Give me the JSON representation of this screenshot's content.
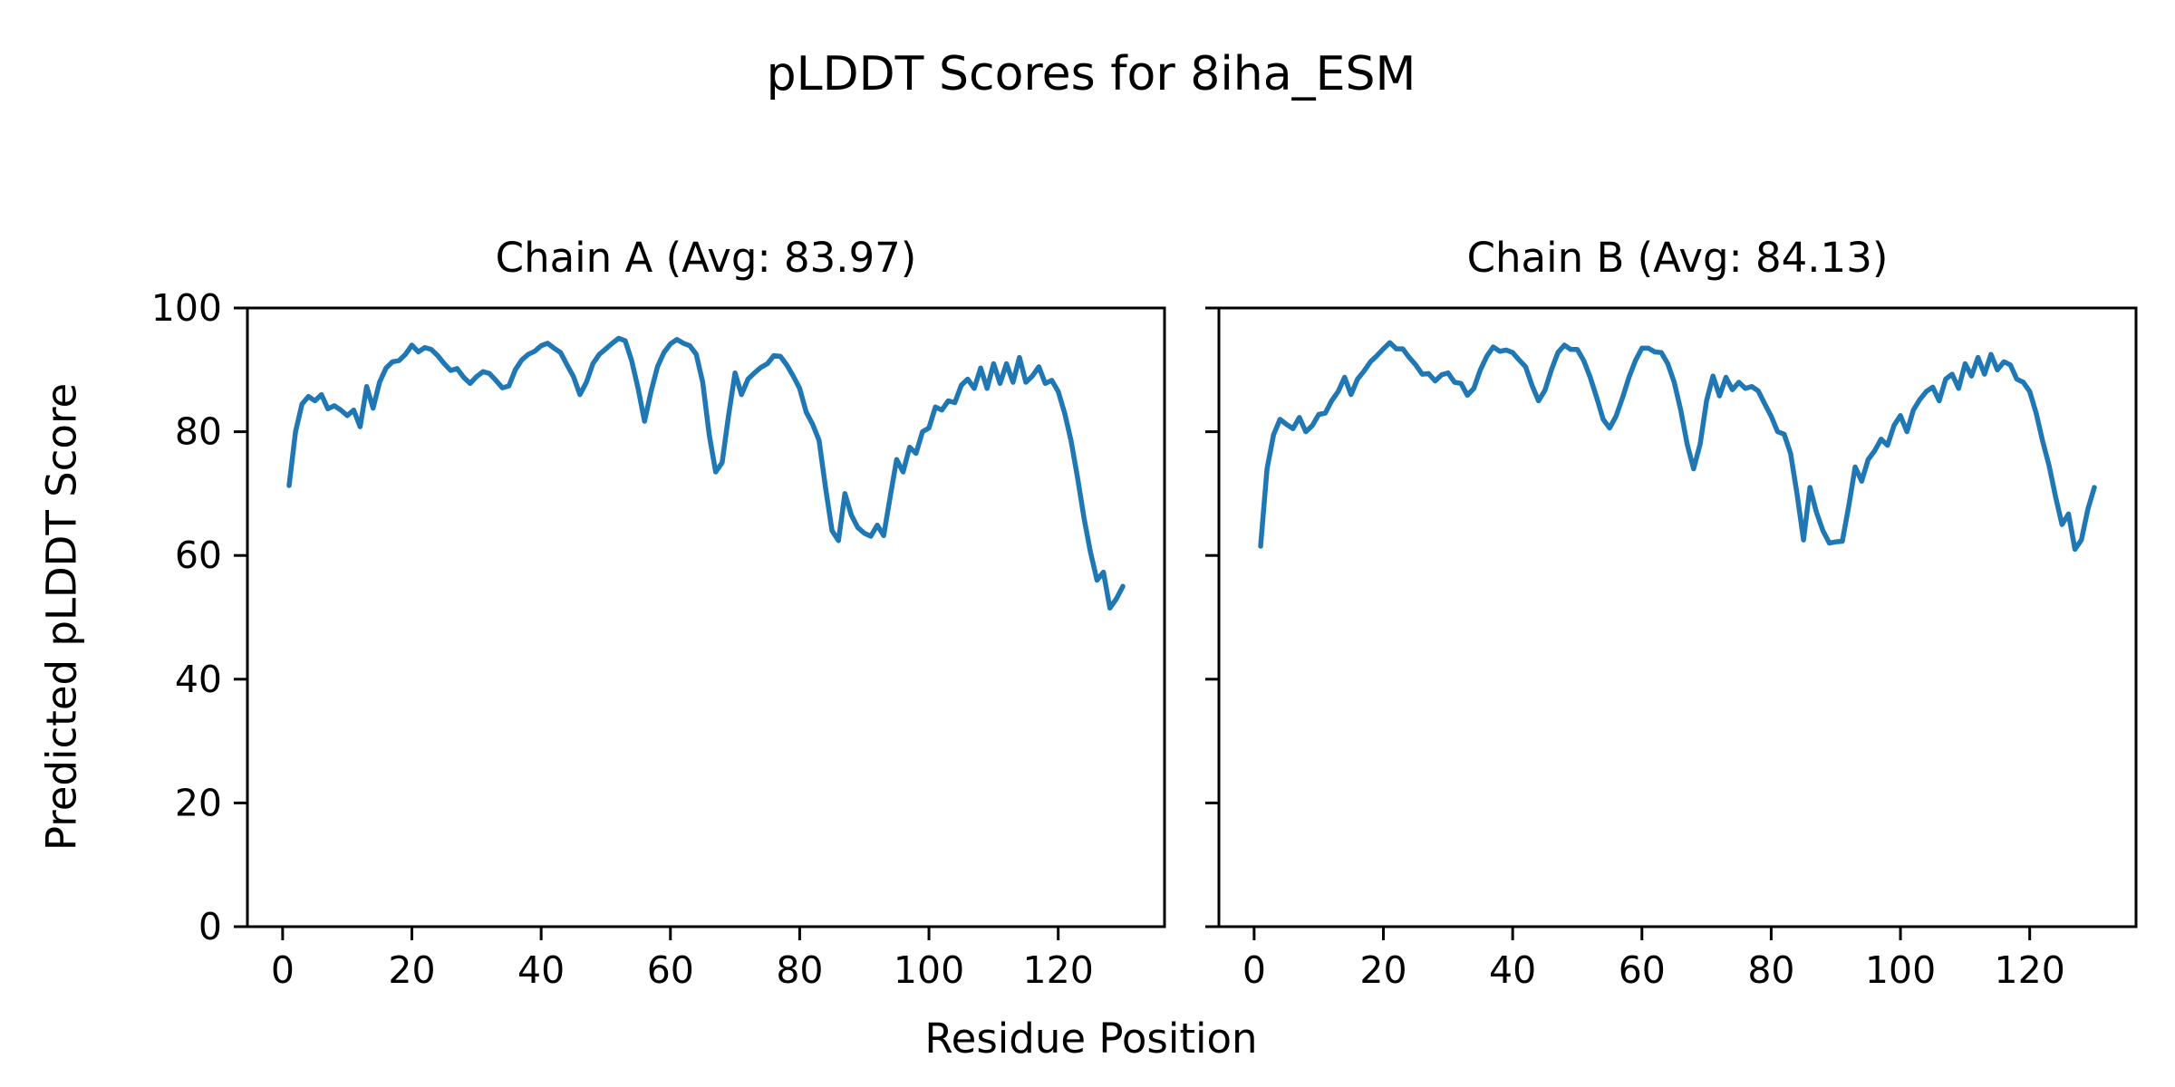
{
  "figure": {
    "suptitle": "pLDDT Scores for 8iha_ESM",
    "xlabel": "Residue Position",
    "ylabel": "Predicted pLDDT Score",
    "background_color": "#ffffff",
    "axis_color": "#000000",
    "line_color": "#1f77b4"
  },
  "chart_data": [
    {
      "type": "line",
      "title": "Chain A (Avg: 83.97)",
      "chain": "A",
      "avg": 83.97,
      "x_start": 1,
      "xlim": [
        -5.45,
        136.45
      ],
      "ylim": [
        0,
        100
      ],
      "xticks": [
        0,
        20,
        40,
        60,
        80,
        100,
        120
      ],
      "yticks": [
        0,
        20,
        40,
        60,
        80,
        100
      ],
      "show_ytick_labels": true,
      "grid": false,
      "values": [
        71.3,
        80.0,
        84.5,
        85.7,
        85.0,
        86.0,
        83.7,
        84.2,
        83.5,
        82.6,
        83.5,
        80.8,
        87.3,
        83.8,
        88.0,
        90.3,
        91.3,
        91.5,
        92.5,
        94.0,
        92.9,
        93.6,
        93.3,
        92.3,
        91.0,
        89.9,
        90.2,
        88.8,
        87.8,
        88.9,
        89.7,
        89.4,
        88.3,
        87.1,
        87.4,
        90.0,
        91.6,
        92.5,
        93.0,
        93.9,
        94.3,
        93.5,
        92.8,
        90.8,
        88.9,
        86.0,
        88.0,
        91.0,
        92.5,
        93.4,
        94.3,
        95.1,
        94.7,
        91.5,
        87.0,
        81.7,
        86.5,
        90.5,
        92.8,
        94.2,
        94.9,
        94.3,
        93.9,
        92.5,
        88.0,
        79.5,
        73.5,
        75.0,
        82.7,
        89.5,
        86.0,
        88.5,
        89.5,
        90.4,
        91.0,
        92.3,
        92.2,
        90.8,
        89.0,
        87.0,
        83.2,
        81.2,
        78.6,
        71.0,
        64.0,
        62.4,
        70.0,
        66.5,
        64.5,
        63.6,
        63.1,
        64.9,
        63.2,
        69.5,
        75.5,
        73.5,
        77.5,
        76.5,
        80.0,
        80.6,
        84.0,
        83.5,
        85.0,
        84.7,
        87.5,
        88.5,
        87.0,
        90.3,
        87.0,
        91.0,
        87.8,
        91.0,
        88.0,
        92.0,
        88.0,
        89.0,
        90.5,
        87.8,
        88.3,
        86.5,
        83.0,
        78.5,
        72.5,
        66.0,
        60.5,
        56.0,
        57.3,
        51.5,
        53.0,
        55.0
      ]
    },
    {
      "type": "line",
      "title": "Chain B (Avg: 84.13)",
      "chain": "B",
      "avg": 84.13,
      "x_start": 1,
      "xlim": [
        -5.45,
        136.45
      ],
      "ylim": [
        0,
        100
      ],
      "xticks": [
        0,
        20,
        40,
        60,
        80,
        100,
        120
      ],
      "yticks": [
        0,
        20,
        40,
        60,
        80,
        100
      ],
      "show_ytick_labels": false,
      "grid": false,
      "values": [
        61.5,
        74.0,
        79.5,
        82.0,
        81.2,
        80.5,
        82.3,
        80.0,
        81.0,
        82.8,
        83.0,
        85.0,
        86.5,
        88.8,
        86.0,
        88.5,
        89.8,
        91.3,
        92.3,
        93.4,
        94.4,
        93.4,
        93.4,
        92.0,
        90.8,
        89.3,
        89.4,
        88.2,
        89.2,
        89.5,
        88.0,
        87.8,
        85.9,
        87.0,
        90.0,
        92.2,
        93.7,
        93.0,
        93.2,
        92.8,
        91.6,
        90.5,
        87.5,
        85.0,
        86.7,
        90.0,
        92.8,
        94.0,
        93.3,
        93.3,
        91.5,
        88.8,
        85.5,
        82.0,
        80.6,
        82.5,
        85.5,
        88.8,
        91.5,
        93.5,
        93.5,
        92.9,
        92.8,
        91.0,
        88.0,
        83.5,
        78.0,
        74.0,
        78.0,
        85.0,
        89.0,
        85.8,
        88.8,
        86.8,
        88.0,
        87.0,
        87.3,
        86.6,
        84.5,
        82.5,
        80.0,
        79.6,
        76.5,
        70.0,
        62.5,
        71.0,
        67.0,
        64.0,
        62.0,
        62.2,
        62.3,
        68.0,
        74.3,
        72.0,
        75.5,
        76.9,
        78.8,
        77.8,
        81.0,
        82.6,
        80.0,
        83.5,
        85.2,
        86.5,
        87.2,
        85.0,
        88.5,
        89.3,
        87.0,
        91.0,
        89.0,
        92.0,
        89.3,
        92.5,
        90.0,
        91.3,
        90.8,
        88.5,
        88.0,
        86.5,
        83.0,
        78.5,
        74.5,
        69.5,
        65.0,
        66.7,
        61.0,
        62.5,
        67.5,
        71.0
      ]
    }
  ]
}
